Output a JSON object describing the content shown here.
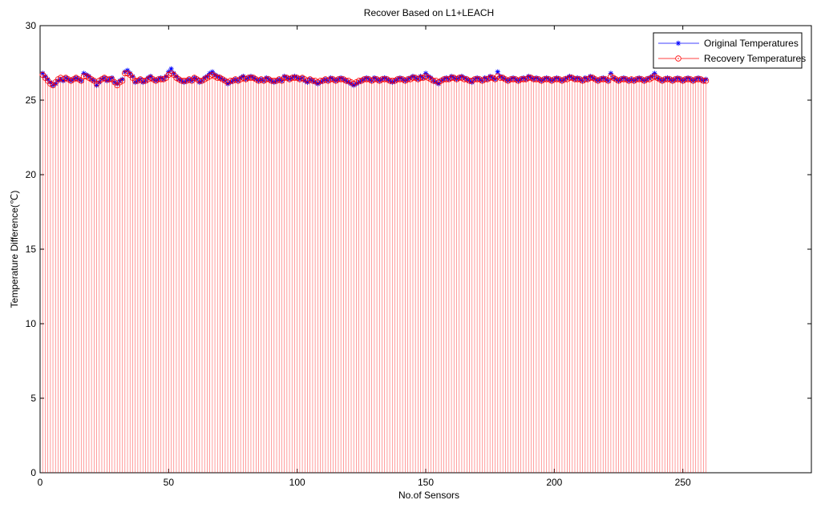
{
  "chart_data": {
    "type": "scatter",
    "title": "Recover Based on L1+LEACH",
    "xlabel": "No.of Sensors",
    "ylabel": "Temperature Difference(℃)",
    "xlim": [
      0,
      300
    ],
    "ylim": [
      0,
      30
    ],
    "xticks": [
      0,
      50,
      100,
      150,
      200,
      250
    ],
    "yticks": [
      0,
      5,
      10,
      15,
      20,
      25,
      30
    ],
    "grid": false,
    "legend_position": "top-right",
    "series": [
      {
        "name": "Original Temperatures",
        "color": "#0000ff",
        "marker": "star",
        "x_start": 1,
        "values": [
          26.8,
          26.6,
          26.4,
          26.2,
          26.0,
          26.1,
          26.3,
          26.4,
          26.3,
          26.5,
          26.4,
          26.3,
          26.4,
          26.5,
          26.4,
          26.3,
          26.8,
          26.7,
          26.6,
          26.4,
          26.3,
          26.0,
          26.2,
          26.4,
          26.5,
          26.3,
          26.4,
          26.5,
          26.2,
          26.1,
          26.3,
          26.4,
          26.9,
          27.0,
          26.8,
          26.6,
          26.2,
          26.3,
          26.4,
          26.2,
          26.3,
          26.5,
          26.6,
          26.4,
          26.3,
          26.4,
          26.5,
          26.4,
          26.6,
          26.9,
          27.1,
          26.8,
          26.6,
          26.4,
          26.3,
          26.2,
          26.3,
          26.4,
          26.3,
          26.5,
          26.4,
          26.2,
          26.3,
          26.5,
          26.6,
          26.8,
          26.9,
          26.7,
          26.6,
          26.5,
          26.4,
          26.3,
          26.1,
          26.2,
          26.3,
          26.4,
          26.3,
          26.5,
          26.6,
          26.4,
          26.5,
          26.6,
          26.5,
          26.4,
          26.3,
          26.4,
          26.3,
          26.5,
          26.4,
          26.3,
          26.2,
          26.3,
          26.4,
          26.3,
          26.6,
          26.5,
          26.4,
          26.5,
          26.6,
          26.5,
          26.4,
          26.5,
          26.3,
          26.2,
          26.4,
          26.3,
          26.2,
          26.1,
          26.2,
          26.3,
          26.4,
          26.3,
          26.5,
          26.4,
          26.3,
          26.4,
          26.5,
          26.4,
          26.3,
          26.2,
          26.1,
          26.0,
          26.1,
          26.2,
          26.3,
          26.4,
          26.5,
          26.4,
          26.3,
          26.5,
          26.4,
          26.3,
          26.4,
          26.5,
          26.4,
          26.3,
          26.2,
          26.3,
          26.4,
          26.5,
          26.4,
          26.3,
          26.4,
          26.5,
          26.6,
          26.5,
          26.4,
          26.6,
          26.5,
          26.8,
          26.6,
          26.5,
          26.3,
          26.2,
          26.1,
          26.3,
          26.4,
          26.5,
          26.4,
          26.6,
          26.5,
          26.4,
          26.5,
          26.6,
          26.5,
          26.4,
          26.3,
          26.2,
          26.4,
          26.5,
          26.4,
          26.3,
          26.5,
          26.4,
          26.6,
          26.5,
          26.4,
          26.9,
          26.6,
          26.5,
          26.4,
          26.3,
          26.4,
          26.5,
          26.4,
          26.3,
          26.4,
          26.5,
          26.4,
          26.6,
          26.5,
          26.4,
          26.5,
          26.4,
          26.3,
          26.4,
          26.5,
          26.4,
          26.3,
          26.4,
          26.5,
          26.4,
          26.3,
          26.4,
          26.5,
          26.6,
          26.5,
          26.4,
          26.5,
          26.4,
          26.3,
          26.5,
          26.4,
          26.6,
          26.5,
          26.4,
          26.3,
          26.4,
          26.5,
          26.4,
          26.3,
          26.8,
          26.5,
          26.4,
          26.3,
          26.4,
          26.5,
          26.4,
          26.3,
          26.4,
          26.3,
          26.4,
          26.5,
          26.4,
          26.3,
          26.4,
          26.5,
          26.6,
          26.8,
          26.5,
          26.4,
          26.3,
          26.4,
          26.5,
          26.4,
          26.3,
          26.4,
          26.5,
          26.4,
          26.3,
          26.4,
          26.5,
          26.4,
          26.3,
          26.4,
          26.5,
          26.4,
          26.3,
          26.4
        ]
      },
      {
        "name": "Recovery Temperatures",
        "color": "#ff0000",
        "marker": "circle-dot",
        "stem": true,
        "x_start": 1,
        "values": [
          26.7,
          26.5,
          26.3,
          26.1,
          26.0,
          26.2,
          26.4,
          26.5,
          26.4,
          26.5,
          26.4,
          26.3,
          26.4,
          26.5,
          26.4,
          26.3,
          26.6,
          26.6,
          26.5,
          26.4,
          26.3,
          26.1,
          26.3,
          26.4,
          26.5,
          26.4,
          26.4,
          26.4,
          26.2,
          26.0,
          26.2,
          26.3,
          26.8,
          26.8,
          26.7,
          26.5,
          26.3,
          26.3,
          26.4,
          26.3,
          26.3,
          26.4,
          26.5,
          26.4,
          26.3,
          26.4,
          26.4,
          26.4,
          26.5,
          26.7,
          26.8,
          26.7,
          26.5,
          26.4,
          26.3,
          26.3,
          26.3,
          26.4,
          26.3,
          26.5,
          26.4,
          26.3,
          26.3,
          26.4,
          26.5,
          26.6,
          26.7,
          26.6,
          26.5,
          26.5,
          26.4,
          26.3,
          26.2,
          26.3,
          26.3,
          26.4,
          26.3,
          26.4,
          26.5,
          26.4,
          26.5,
          26.5,
          26.5,
          26.4,
          26.3,
          26.4,
          26.3,
          26.4,
          26.4,
          26.3,
          26.3,
          26.3,
          26.4,
          26.3,
          26.5,
          26.5,
          26.4,
          26.5,
          26.5,
          26.5,
          26.4,
          26.5,
          26.4,
          26.3,
          26.4,
          26.3,
          26.3,
          26.2,
          26.3,
          26.3,
          26.4,
          26.3,
          26.4,
          26.4,
          26.3,
          26.4,
          26.4,
          26.4,
          26.3,
          26.3,
          26.2,
          26.1,
          26.2,
          26.3,
          26.3,
          26.4,
          26.4,
          26.4,
          26.3,
          26.4,
          26.4,
          26.3,
          26.4,
          26.4,
          26.4,
          26.3,
          26.3,
          26.3,
          26.4,
          26.4,
          26.4,
          26.3,
          26.4,
          26.4,
          26.5,
          26.5,
          26.4,
          26.5,
          26.5,
          26.6,
          26.5,
          26.4,
          26.3,
          26.3,
          26.2,
          26.3,
          26.4,
          26.4,
          26.4,
          26.5,
          26.5,
          26.4,
          26.5,
          26.5,
          26.4,
          26.4,
          26.3,
          26.3,
          26.4,
          26.4,
          26.4,
          26.3,
          26.4,
          26.4,
          26.5,
          26.5,
          26.4,
          26.6,
          26.5,
          26.5,
          26.4,
          26.3,
          26.4,
          26.4,
          26.4,
          26.3,
          26.4,
          26.4,
          26.4,
          26.5,
          26.5,
          26.4,
          26.4,
          26.4,
          26.3,
          26.4,
          26.4,
          26.4,
          26.3,
          26.4,
          26.4,
          26.4,
          26.3,
          26.4,
          26.4,
          26.5,
          26.5,
          26.4,
          26.4,
          26.4,
          26.3,
          26.4,
          26.4,
          26.5,
          26.5,
          26.4,
          26.3,
          26.4,
          26.4,
          26.4,
          26.3,
          26.6,
          26.5,
          26.4,
          26.3,
          26.4,
          26.4,
          26.4,
          26.3,
          26.4,
          26.3,
          26.4,
          26.4,
          26.4,
          26.3,
          26.4,
          26.4,
          26.5,
          26.6,
          26.5,
          26.4,
          26.3,
          26.4,
          26.4,
          26.4,
          26.3,
          26.4,
          26.4,
          26.4,
          26.3,
          26.4,
          26.4,
          26.4,
          26.3,
          26.4,
          26.4,
          26.4,
          26.3,
          26.3
        ]
      }
    ]
  }
}
